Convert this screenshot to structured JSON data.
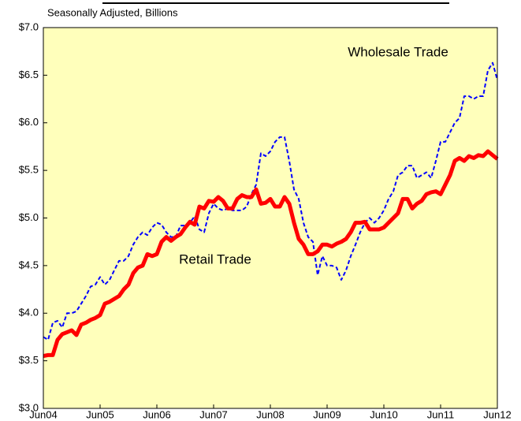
{
  "chart_data": {
    "type": "line",
    "subtitle": "Seasonally Adjusted, Billions",
    "annotations": [
      "Wholesale Trade",
      "Retail Trade"
    ],
    "categories": [
      "Jun04",
      null,
      null,
      null,
      null,
      null,
      null,
      null,
      null,
      null,
      null,
      null,
      "Jun05",
      null,
      null,
      null,
      null,
      null,
      null,
      null,
      null,
      null,
      null,
      null,
      "Jun06",
      null,
      null,
      null,
      null,
      null,
      null,
      null,
      null,
      null,
      null,
      null,
      "Jun07",
      null,
      null,
      null,
      null,
      null,
      null,
      null,
      null,
      null,
      null,
      null,
      "Jun08",
      null,
      null,
      null,
      null,
      null,
      null,
      null,
      null,
      null,
      null,
      null,
      "Jun09",
      null,
      null,
      null,
      null,
      null,
      null,
      null,
      null,
      null,
      null,
      null,
      "Jun10",
      null,
      null,
      null,
      null,
      null,
      null,
      null,
      null,
      null,
      null,
      null,
      "Jun11",
      null,
      null,
      null,
      null,
      null,
      null,
      null,
      null,
      null,
      null,
      null,
      "Jun12"
    ],
    "series": [
      {
        "name": "Wholesale Trade",
        "color": "#0000ff",
        "dashed": true,
        "width": 2,
        "values": [
          3.75,
          3.72,
          3.9,
          3.92,
          3.85,
          4.0,
          4.0,
          4.02,
          4.1,
          4.18,
          4.28,
          4.3,
          4.38,
          4.3,
          4.35,
          4.45,
          4.55,
          4.55,
          4.6,
          4.72,
          4.8,
          4.85,
          4.82,
          4.9,
          4.95,
          4.93,
          4.85,
          4.8,
          4.8,
          4.92,
          4.92,
          4.95,
          5.02,
          4.88,
          4.85,
          5.05,
          5.15,
          5.1,
          5.08,
          5.1,
          5.08,
          5.08,
          5.08,
          5.12,
          5.25,
          5.35,
          5.68,
          5.65,
          5.7,
          5.8,
          5.85,
          5.85,
          5.6,
          5.3,
          5.2,
          4.95,
          4.8,
          4.75,
          4.4,
          4.6,
          4.5,
          4.5,
          4.48,
          4.35,
          4.45,
          4.6,
          4.72,
          4.85,
          4.95,
          5.0,
          4.95,
          5.0,
          5.08,
          5.2,
          5.28,
          5.45,
          5.48,
          5.55,
          5.55,
          5.42,
          5.45,
          5.48,
          5.42,
          5.6,
          5.8,
          5.8,
          5.9,
          6.0,
          6.05,
          6.28,
          6.28,
          6.25,
          6.28,
          6.28,
          6.55,
          6.63,
          6.45
        ]
      },
      {
        "name": "Retail Trade",
        "color": "#ff0000",
        "dashed": false,
        "width": 5,
        "values": [
          3.55,
          3.56,
          3.56,
          3.72,
          3.78,
          3.8,
          3.82,
          3.77,
          3.88,
          3.9,
          3.93,
          3.95,
          3.98,
          4.1,
          4.12,
          4.15,
          4.18,
          4.25,
          4.3,
          4.42,
          4.48,
          4.5,
          4.62,
          4.6,
          4.62,
          4.75,
          4.8,
          4.76,
          4.8,
          4.83,
          4.9,
          4.96,
          4.93,
          5.12,
          5.1,
          5.18,
          5.17,
          5.22,
          5.18,
          5.1,
          5.1,
          5.2,
          5.24,
          5.22,
          5.22,
          5.3,
          5.15,
          5.16,
          5.2,
          5.12,
          5.12,
          5.22,
          5.15,
          4.95,
          4.78,
          4.72,
          4.62,
          4.62,
          4.65,
          4.72,
          4.72,
          4.7,
          4.73,
          4.75,
          4.78,
          4.85,
          4.95,
          4.95,
          4.96,
          4.88,
          4.88,
          4.88,
          4.9,
          4.95,
          5.0,
          5.05,
          5.2,
          5.2,
          5.1,
          5.15,
          5.18,
          5.25,
          5.27,
          5.28,
          5.25,
          5.35,
          5.45,
          5.6,
          5.63,
          5.6,
          5.65,
          5.63,
          5.66,
          5.65,
          5.7,
          5.66,
          5.62
        ]
      }
    ],
    "ylim": [
      3.0,
      7.0
    ],
    "yticks": [
      {
        "value": 3.0,
        "label": "$3.0"
      },
      {
        "value": 3.5,
        "label": "$3.5"
      },
      {
        "value": 4.0,
        "label": "$4.0"
      },
      {
        "value": 4.5,
        "label": "$4.5"
      },
      {
        "value": 5.0,
        "label": "$5.0"
      },
      {
        "value": 5.5,
        "label": "$5.5"
      },
      {
        "value": 6.0,
        "label": "$6.0"
      },
      {
        "value": 6.5,
        "label": "$6.5"
      },
      {
        "value": 7.0,
        "label": "$7.0"
      }
    ],
    "plot_background": "#ffffbb",
    "grid": false
  }
}
